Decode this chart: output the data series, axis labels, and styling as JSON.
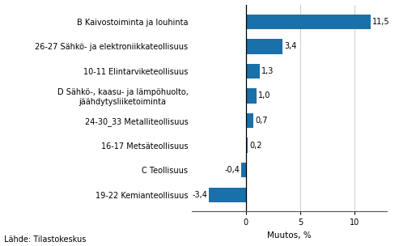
{
  "categories": [
    "19-22 Kemianteollisuus",
    "C Teollisuus",
    "16-17 Metsäteollisuus",
    "24-30_33 Metalliteollisuus",
    "D Sähkö-, kaasu- ja lämpöhuolto,\njäähdytysliiketoiminta",
    "10-11 Elintarviketeollisuus",
    "26-27 Sähkö- ja elektroniikkateollisuus",
    "B Kaivostoiminta ja louhinta"
  ],
  "values": [
    -3.4,
    -0.4,
    0.2,
    0.7,
    1.0,
    1.3,
    3.4,
    11.5
  ],
  "bar_color": "#1a70a8",
  "xlabel": "Muutos, %",
  "footnote": "Lähde: Tilastokeskus",
  "xlim": [
    -5,
    13
  ],
  "xticks": [
    0,
    5,
    10
  ],
  "background_color": "#ffffff",
  "label_fontsize": 7.0,
  "value_fontsize": 7.0,
  "xlabel_fontsize": 7.5,
  "footnote_fontsize": 7.0
}
